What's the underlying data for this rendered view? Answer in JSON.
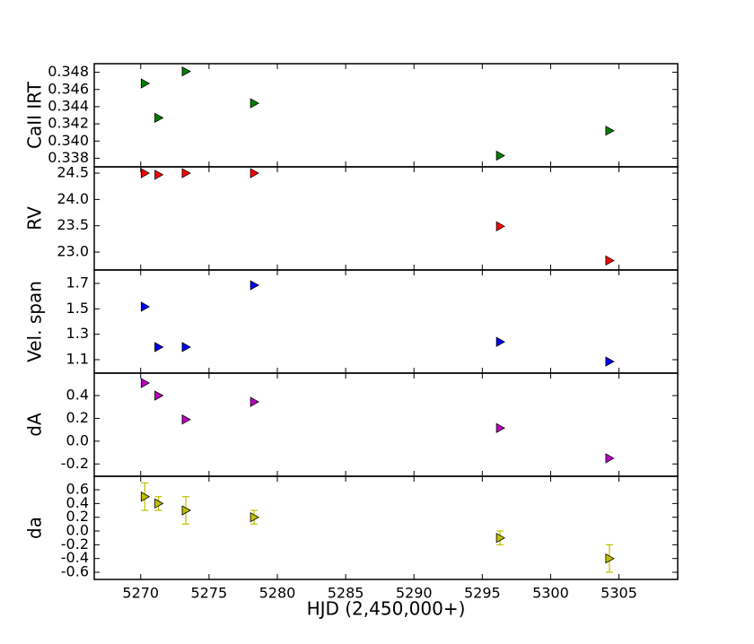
{
  "chart_data": [
    {
      "type": "scatter",
      "ylabel": "CaII IRT",
      "color": "#008000",
      "x": [
        5270.3,
        5271.3,
        5273.3,
        5278.3,
        5296.3,
        5304.3
      ],
      "values": [
        0.3467,
        0.3427,
        0.3481,
        0.3444,
        0.3383,
        0.3412
      ],
      "xlim": [
        5266.6,
        5309.3
      ],
      "ylim": [
        0.337,
        0.349
      ],
      "yticks": [
        0.338,
        {
          "value": 0.34,
          "label": "0.340"
        },
        0.342,
        0.344,
        0.346,
        0.348
      ]
    },
    {
      "type": "scatter",
      "ylabel": "RV",
      "color": "#ff0000",
      "x": [
        5270.3,
        5271.3,
        5273.3,
        5278.3,
        5296.3,
        5304.3
      ],
      "values": [
        24.5,
        24.47,
        24.5,
        24.5,
        23.49,
        22.84
      ],
      "xlim": [
        5266.6,
        5309.3
      ],
      "ylim": [
        22.66,
        24.62
      ],
      "yticks": [
        {
          "value": 23,
          "label": "23.0"
        },
        23.5,
        {
          "value": 24,
          "label": "24.0"
        },
        24.5
      ]
    },
    {
      "type": "scatter",
      "ylabel": "Vel. span",
      "color": "#0000ff",
      "x": [
        5270.3,
        5271.3,
        5273.3,
        5278.3,
        5296.3,
        5304.3
      ],
      "values": [
        1.517,
        1.199,
        1.199,
        1.686,
        1.24,
        1.085
      ],
      "xlim": [
        5266.6,
        5309.3
      ],
      "ylim": [
        0.994,
        1.806
      ],
      "yticks": [
        1.1,
        1.3,
        1.5,
        1.7
      ]
    },
    {
      "type": "scatter",
      "ylabel": "dA",
      "color": "#bf00bf",
      "x": [
        5270.3,
        5271.3,
        5273.3,
        5278.3,
        5296.3,
        5304.3
      ],
      "values": [
        0.51,
        0.4,
        0.19,
        0.345,
        0.115,
        -0.15
      ],
      "xlim": [
        5266.6,
        5309.3
      ],
      "ylim": [
        -0.308,
        0.597
      ],
      "yticks": [
        -0.2,
        {
          "value": 0,
          "label": "0.0"
        },
        0.2,
        0.4
      ]
    },
    {
      "type": "scatter",
      "ylabel": "da",
      "xlabel": "HJD (2,450,000+)",
      "color": "#bfbf00",
      "x": [
        5270.3,
        5271.3,
        5273.3,
        5278.3,
        5296.3,
        5304.3
      ],
      "values": [
        0.5,
        0.4,
        0.3,
        0.2,
        -0.1,
        -0.4
      ],
      "errors": [
        0.2,
        0.1,
        0.2,
        0.1,
        0.1,
        0.2
      ],
      "xlim": [
        5266.6,
        5309.3
      ],
      "ylim": [
        -0.704,
        0.796
      ],
      "yticks": [
        -0.6,
        -0.4,
        -0.2,
        {
          "value": 0,
          "label": "0.0"
        },
        0.2,
        0.4,
        0.6
      ],
      "xticks": [
        5270,
        5275,
        5280,
        5285,
        5290,
        5295,
        5300,
        5305
      ]
    }
  ]
}
